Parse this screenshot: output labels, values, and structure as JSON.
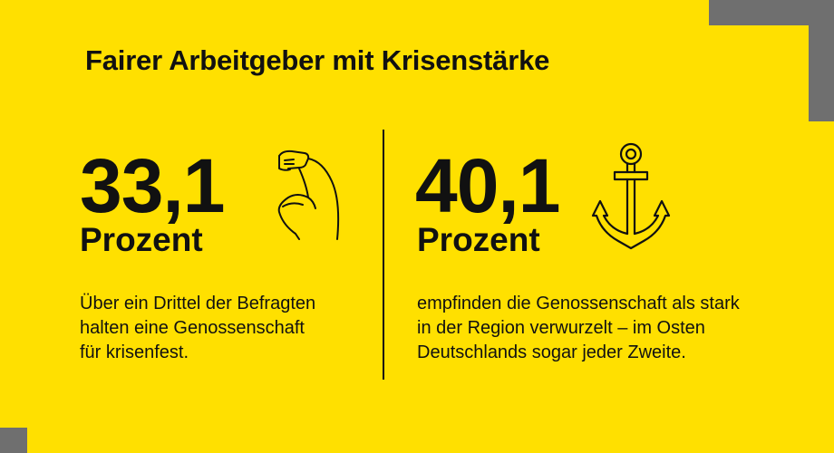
{
  "title": "Fairer Arbeitgeber mit Krisenstärke",
  "colors": {
    "background": "#FFE000",
    "text": "#111111",
    "accent_gray": "#6F6F6F"
  },
  "stats": [
    {
      "value": "33,1",
      "unit": "Prozent",
      "icon": "flexed-arm-icon",
      "description": [
        "Über ein Drittel der Befragten",
        "halten eine Genossenschaft",
        "für krisenfest."
      ]
    },
    {
      "value": "40,1",
      "unit": "Prozent",
      "icon": "anchor-icon",
      "description": [
        "empfinden die Genossenschaft als stark",
        "in der Region verwurzelt – im Osten",
        "Deutschlands sogar jeder Zweite."
      ]
    }
  ]
}
